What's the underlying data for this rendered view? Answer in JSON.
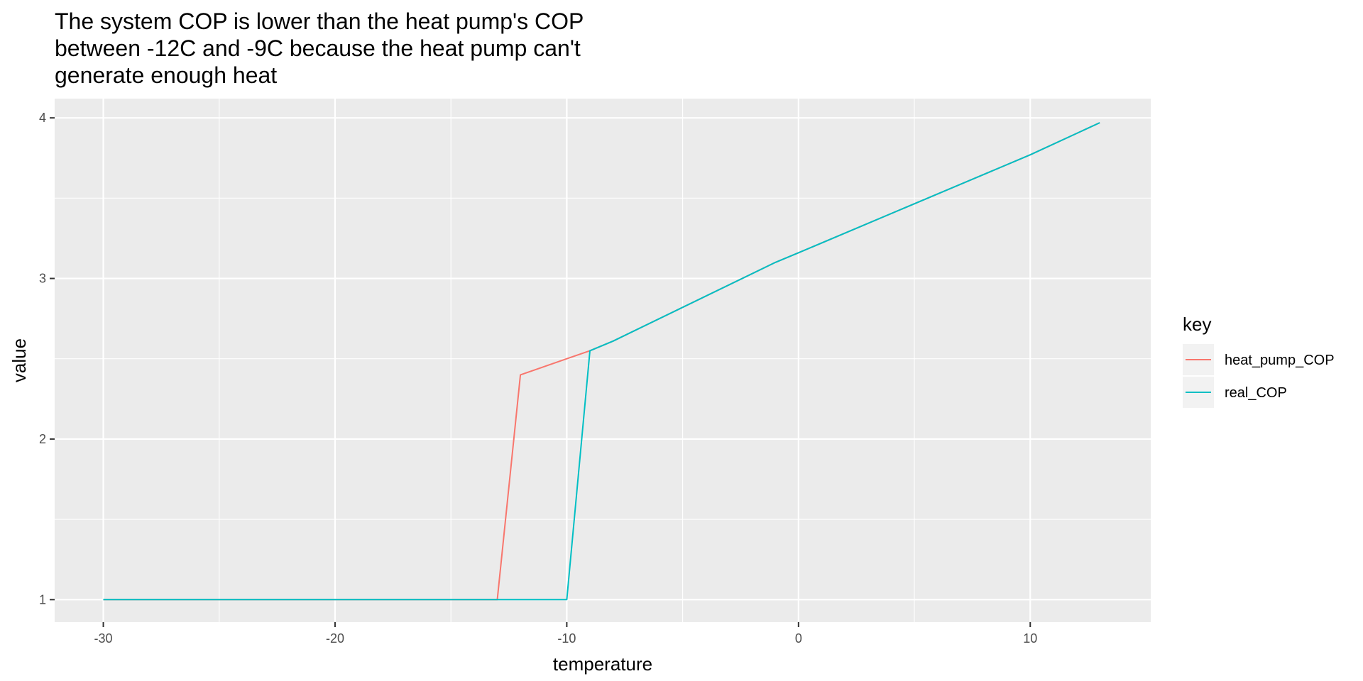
{
  "chart_data": {
    "type": "line",
    "title_lines": [
      "The system COP is lower than the heat pump's COP",
      "between -12C and -9C because the heat pump can't",
      "generate enough heat"
    ],
    "xlabel": "temperature",
    "ylabel": "value",
    "xlim": [
      -32.1,
      15.2
    ],
    "ylim": [
      0.86,
      4.12
    ],
    "x_ticks": [
      -30,
      -20,
      -10,
      0,
      10
    ],
    "x_tick_labels": [
      "-30",
      "-20",
      "-10",
      "0",
      "10"
    ],
    "x_minor_ticks": [
      -25,
      -15,
      -5,
      5
    ],
    "y_ticks": [
      1,
      2,
      3,
      4
    ],
    "y_tick_labels": [
      "1",
      "2",
      "3",
      "4"
    ],
    "y_minor_ticks": [
      1.5,
      2.5,
      3.5
    ],
    "grid": true,
    "legend": {
      "title": "key",
      "position": "right"
    },
    "series": [
      {
        "name": "heat_pump_COP",
        "color": "#F8766D",
        "x": [
          -30,
          -13,
          -12,
          -11,
          -10,
          -9,
          -8,
          -1,
          0,
          10,
          13
        ],
        "y": [
          1,
          1,
          2.4,
          2.45,
          2.5,
          2.55,
          2.61,
          3.1,
          3.16,
          3.77,
          3.97
        ]
      },
      {
        "name": "real_COP",
        "color": "#00BFC4",
        "x": [
          -30,
          -13,
          -12,
          -11,
          -10,
          -9,
          -8,
          -1,
          0,
          10,
          13
        ],
        "y": [
          1,
          1,
          1,
          1,
          1,
          2.55,
          2.61,
          3.1,
          3.16,
          3.77,
          3.97
        ]
      }
    ]
  }
}
